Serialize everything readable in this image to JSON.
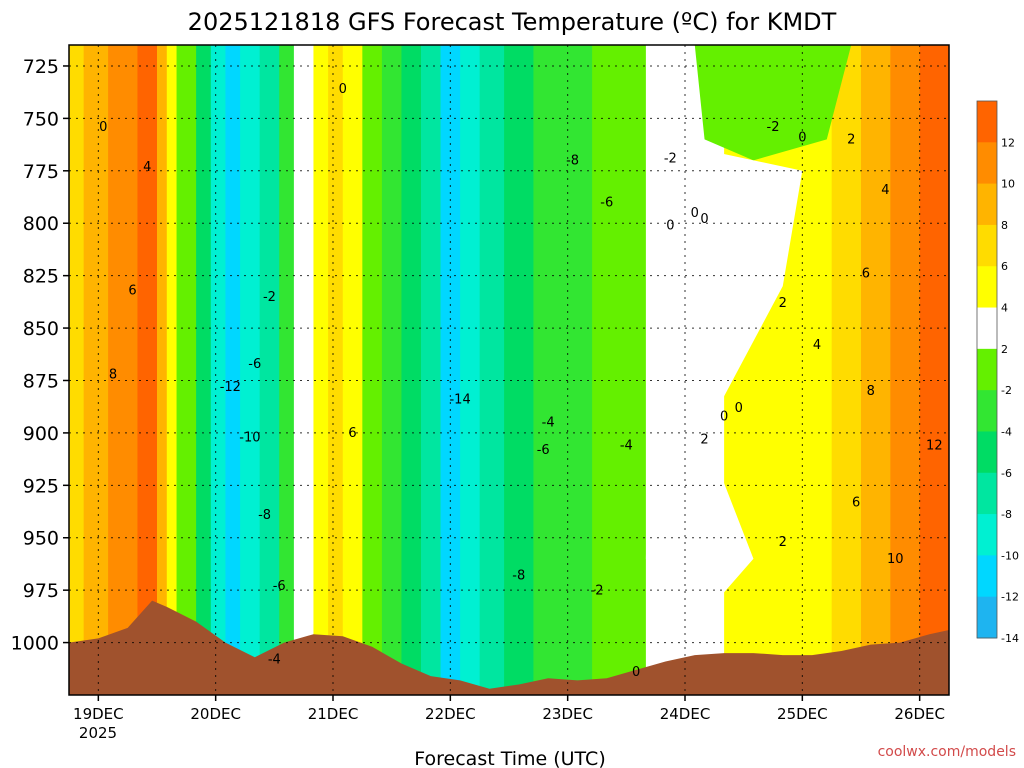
{
  "chart_data": {
    "type": "heatmap",
    "title": "2025121818 GFS Forecast Temperature (ºC) for KMDT",
    "xlabel": "Forecast Time (UTC)",
    "ylabel": "",
    "credit": "coolwx.com/models",
    "y_axis": {
      "ticks": [
        725,
        750,
        775,
        800,
        825,
        850,
        875,
        900,
        925,
        950,
        975,
        1000
      ],
      "tick_labels": [
        "725",
        "750",
        "775",
        "800",
        "825",
        "850",
        "875",
        "900",
        "925",
        "950",
        "975",
        "1000"
      ],
      "range": [
        715,
        1025
      ],
      "inverted": true
    },
    "x_axis": {
      "ticks_hours": [
        6,
        30,
        54,
        78,
        102,
        126,
        150,
        174
      ],
      "tick_labels": [
        "19DEC",
        "20DEC",
        "21DEC",
        "22DEC",
        "23DEC",
        "24DEC",
        "25DEC",
        "26DEC"
      ],
      "year_label": "2025",
      "range_hours": [
        0,
        180
      ]
    },
    "grid": true,
    "colorbar": {
      "placement": "right",
      "tick_labels": [
        "-14",
        "-12",
        "-10",
        "-8",
        "-6",
        "-4",
        "-2",
        "2",
        "4",
        "6",
        "8",
        "10",
        "12"
      ],
      "colors": [
        "#1eb4f0",
        "#00d7ff",
        "#00f0d2",
        "#00e6a0",
        "#00dc64",
        "#32e632",
        "#64f000",
        "#ffffff",
        "#ffff00",
        "#ffdc00",
        "#ffb400",
        "#ff8c00",
        "#ff6400"
      ]
    },
    "contour_labels": [
      {
        "text": "0",
        "h": 7,
        "p": 756
      },
      {
        "text": "4",
        "h": 16,
        "p": 775
      },
      {
        "text": "6",
        "h": 13,
        "p": 834
      },
      {
        "text": "8",
        "h": 9,
        "p": 874
      },
      {
        "text": "0",
        "h": 56,
        "p": 738
      },
      {
        "text": "-2",
        "h": 41,
        "p": 837
      },
      {
        "text": "-6",
        "h": 38,
        "p": 869
      },
      {
        "text": "-12",
        "h": 33,
        "p": 880
      },
      {
        "text": "-10",
        "h": 37,
        "p": 904
      },
      {
        "text": "-8",
        "h": 40,
        "p": 941
      },
      {
        "text": "-6",
        "h": 43,
        "p": 975
      },
      {
        "text": "-4",
        "h": 42,
        "p": 1010
      },
      {
        "text": "6",
        "h": 58,
        "p": 902
      },
      {
        "text": "-14",
        "h": 80,
        "p": 886
      },
      {
        "text": "-8",
        "h": 103,
        "p": 772
      },
      {
        "text": "-6",
        "h": 110,
        "p": 792
      },
      {
        "text": "-4",
        "h": 98,
        "p": 897
      },
      {
        "text": "-6",
        "h": 97,
        "p": 910
      },
      {
        "text": "-4",
        "h": 114,
        "p": 908
      },
      {
        "text": "-8",
        "h": 92,
        "p": 970
      },
      {
        "text": "-2",
        "h": 108,
        "p": 977
      },
      {
        "text": "0",
        "h": 116,
        "p": 1016
      },
      {
        "text": "-2",
        "h": 123,
        "p": 771
      },
      {
        "text": "0",
        "h": 128,
        "p": 797
      },
      {
        "text": "0",
        "h": 130,
        "p": 800
      },
      {
        "text": "0",
        "h": 123,
        "p": 803
      },
      {
        "text": "-2",
        "h": 144,
        "p": 756
      },
      {
        "text": "0",
        "h": 150,
        "p": 761
      },
      {
        "text": "2",
        "h": 160,
        "p": 762
      },
      {
        "text": "4",
        "h": 167,
        "p": 786
      },
      {
        "text": "6",
        "h": 163,
        "p": 826
      },
      {
        "text": "2",
        "h": 146,
        "p": 840
      },
      {
        "text": "4",
        "h": 153,
        "p": 860
      },
      {
        "text": "8",
        "h": 164,
        "p": 882
      },
      {
        "text": "0",
        "h": 134,
        "p": 894
      },
      {
        "text": "0",
        "h": 137,
        "p": 890
      },
      {
        "text": "2",
        "h": 130,
        "p": 905
      },
      {
        "text": "12",
        "h": 177,
        "p": 908
      },
      {
        "text": "6",
        "h": 161,
        "p": 935
      },
      {
        "text": "10",
        "h": 169,
        "p": 962
      },
      {
        "text": "2",
        "h": 146,
        "p": 954
      }
    ]
  }
}
